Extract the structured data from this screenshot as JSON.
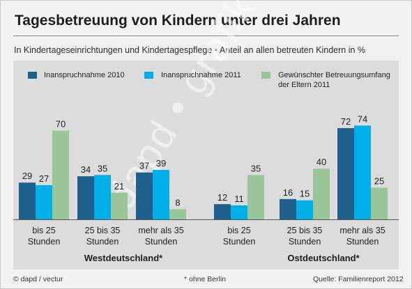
{
  "title": "Tagesbetreuung von Kindern unter drei Jahren",
  "subtitle": "In Kindertageseinrichtungen und Kindertagespflege • Anteil an allen betreuten Kindern in %",
  "watermark": "dapd • grafik",
  "footer": {
    "source_credit": "© dapd / vectur",
    "note": "* ohne Berlin",
    "source": "Quelle: Familienreport 2012"
  },
  "colors": {
    "series_2010": "#1f5f8b",
    "series_2011": "#00aee8",
    "series_wish": "#99c599"
  },
  "chart_data": {
    "type": "bar",
    "title": "Tagesbetreuung von Kindern unter drei Jahren",
    "subtitle": "In Kindertageseinrichtungen und Kindertagespflege • Anteil an allen betreuten Kindern in %",
    "ylim": [
      0,
      80
    ],
    "grid": false,
    "legend_position": "top",
    "categories": [
      "bis 25 Stunden",
      "25 bis 35 Stunden",
      "mehr als 35 Stunden"
    ],
    "groups": [
      "Westdeutschland*",
      "Ostdeutschland*"
    ],
    "series": [
      {
        "name": "Inanspruchnahme 2010",
        "values": {
          "Westdeutschland*": [
            29,
            34,
            37
          ],
          "Ostdeutschland*": [
            12,
            16,
            72
          ]
        }
      },
      {
        "name": "Inanspruchnahme 2011",
        "values": {
          "Westdeutschland*": [
            27,
            35,
            39
          ],
          "Ostdeutschland*": [
            11,
            15,
            74
          ]
        }
      },
      {
        "name": "Gewünschter Betreuungsumfang der Eltern 2011",
        "values": {
          "Westdeutschland*": [
            70,
            21,
            8
          ],
          "Ostdeutschland*": [
            35,
            40,
            25
          ]
        }
      }
    ],
    "category_labels": [
      [
        "bis 25",
        "Stunden"
      ],
      [
        "25 bis 35",
        "Stunden"
      ],
      [
        "mehr als 35",
        "Stunden"
      ]
    ]
  }
}
